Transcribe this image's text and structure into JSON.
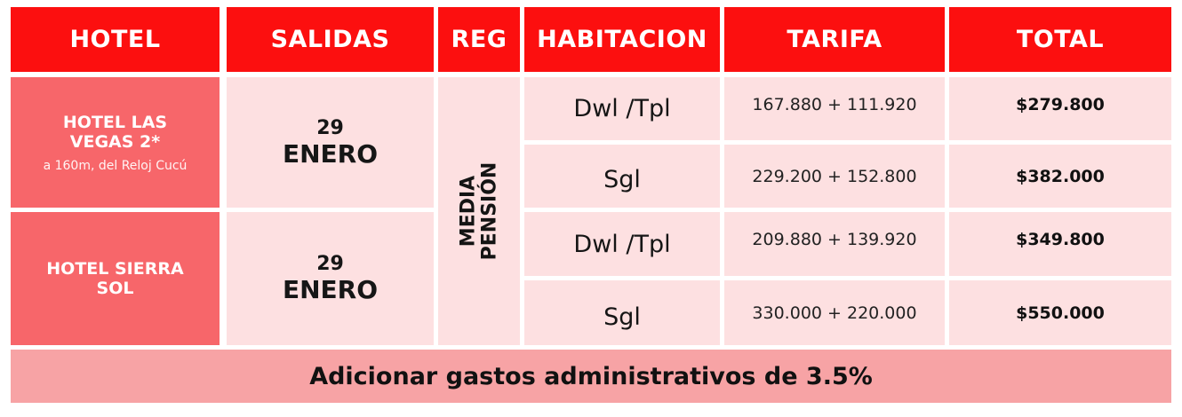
{
  "headers": {
    "hotel": "HOTEL",
    "salidas": "SALIDAS",
    "reg": "REG",
    "habitacion": "HABITACION",
    "tarifa": "TARIFA",
    "total": "TOTAL"
  },
  "hotels": [
    {
      "name_line1": "HOTEL LAS",
      "name_line2": "VEGAS 2*",
      "subtitle": "a 160m, del Reloj Cucú",
      "salida_day": "29",
      "salida_month": "ENERO",
      "rooms": [
        {
          "habitacion": "Dwl /Tpl",
          "tarifa": "167.880 + 111.920",
          "total": "$279.800"
        },
        {
          "habitacion": "Sgl",
          "tarifa": "229.200 + 152.800",
          "total": "$382.000"
        }
      ]
    },
    {
      "name_line1": "HOTEL SIERRA",
      "name_line2": "SOL",
      "subtitle": "",
      "salida_day": "29",
      "salida_month": "ENERO",
      "rooms": [
        {
          "habitacion": "Dwl /Tpl",
          "tarifa": "209.880 + 139.920",
          "total": "$349.800"
        },
        {
          "habitacion": "Sgl",
          "tarifa": "330.000 + 220.000",
          "total": "$550.000"
        }
      ]
    }
  ],
  "regimen": {
    "line1": "MEDIA",
    "line2": "PENSIÓN"
  },
  "footer": "Adicionar gastos administrativos de 3.5%",
  "colors": {
    "header_red": "#fc0f0f",
    "hotel_cell": "#f7666a",
    "light_cell": "#fde0e1",
    "footer_cell": "#f7a3a5"
  }
}
